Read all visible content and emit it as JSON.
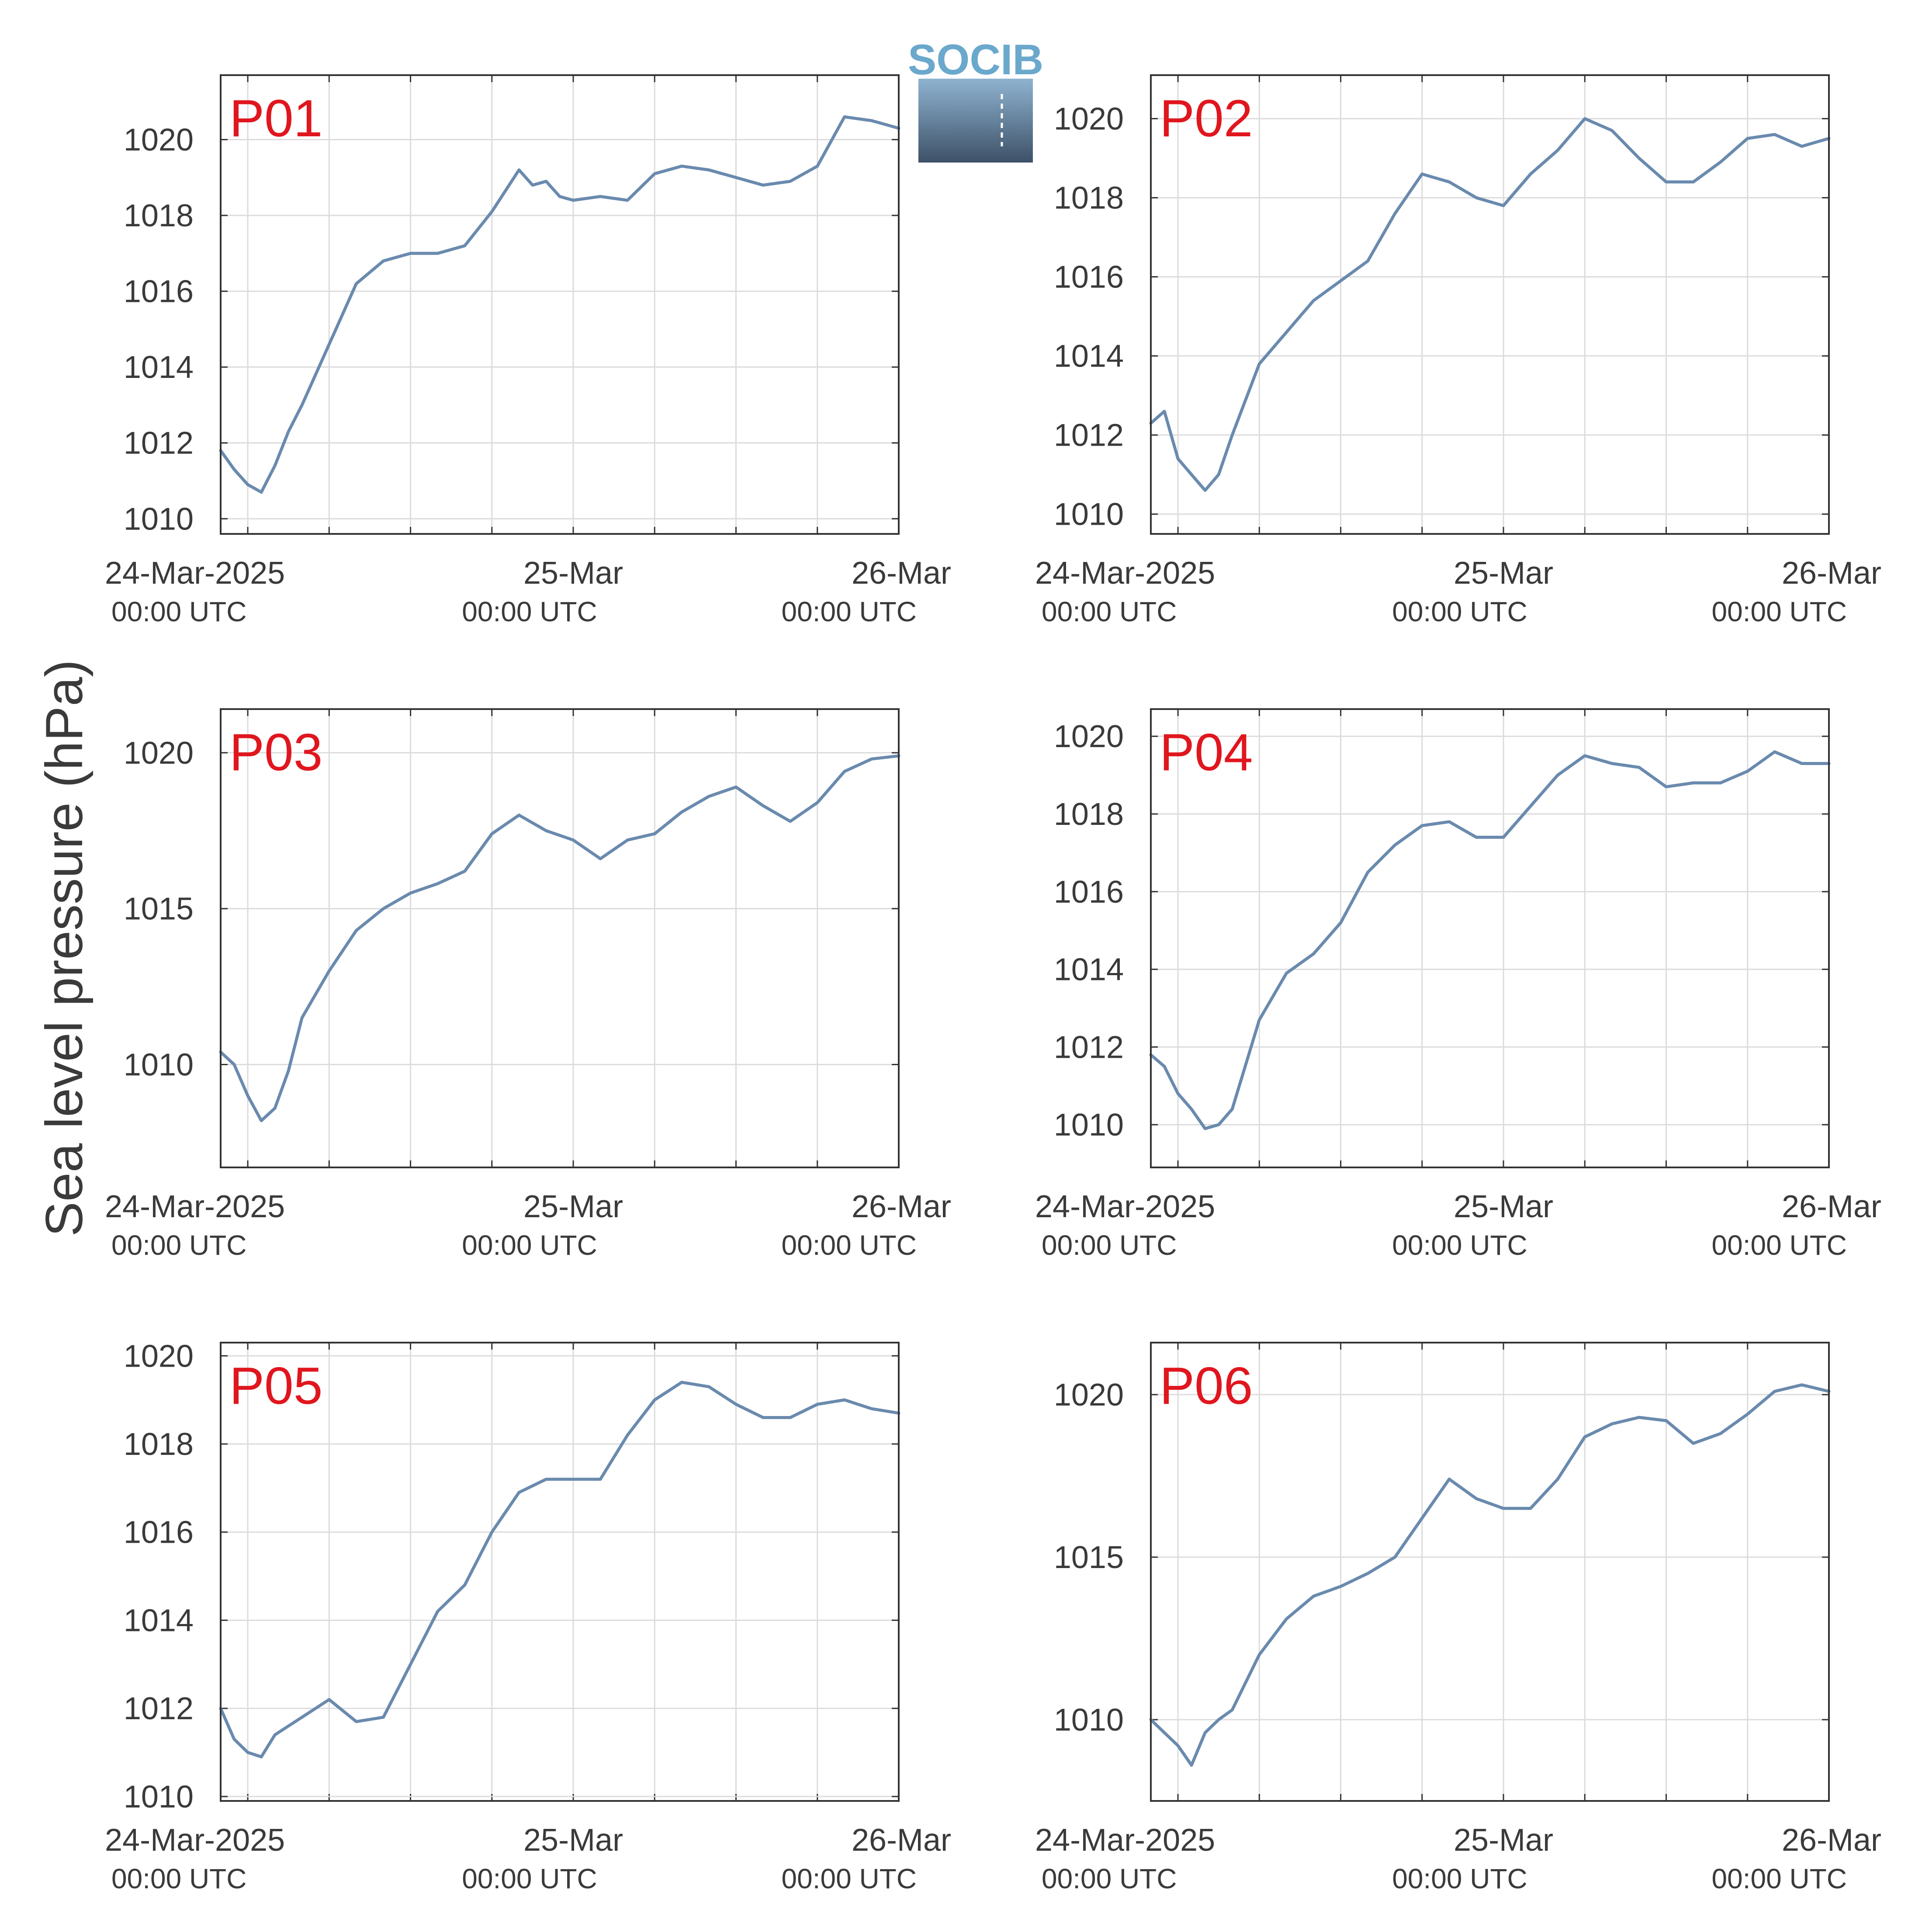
{
  "figure": {
    "ylabel": "Sea level pressure (hPa)",
    "logo_text": "SOCIB",
    "colors": {
      "line": "#6a8aae",
      "panel_label": "#e0161e",
      "grid": "#dcdcdc",
      "axes": "#333333"
    }
  },
  "chart_data": [
    {
      "type": "line",
      "label": "P01",
      "x_ticks": [
        {
          "top": "24-Mar-2025",
          "bottom": "00:00 UTC"
        },
        {
          "top": "25-Mar",
          "bottom": "00:00 UTC"
        },
        {
          "top": "26-Mar",
          "bottom": "00:00 UTC"
        }
      ],
      "xlim": [
        "2025-03-23 22:00",
        "2025-03-26 00:00"
      ],
      "yticks": [
        1010,
        1012,
        1014,
        1016,
        1018,
        1020
      ],
      "ylim": [
        1009.6,
        1021.7
      ],
      "grid": true,
      "series": [
        {
          "x": [
            "2025-03-23 22:00",
            "2025-03-23 23:00",
            "2025-03-24 00:00",
            "2025-03-24 01:00",
            "2025-03-24 02:00",
            "2025-03-24 03:00",
            "2025-03-24 04:00",
            "2025-03-24 06:00",
            "2025-03-24 08:00",
            "2025-03-24 10:00",
            "2025-03-24 12:00",
            "2025-03-24 14:00",
            "2025-03-24 16:00",
            "2025-03-24 18:00",
            "2025-03-24 20:00",
            "2025-03-24 21:00",
            "2025-03-24 22:00",
            "2025-03-24 23:00",
            "2025-03-25 00:00",
            "2025-03-25 02:00",
            "2025-03-25 04:00",
            "2025-03-25 06:00",
            "2025-03-25 08:00",
            "2025-03-25 10:00",
            "2025-03-25 12:00",
            "2025-03-25 14:00",
            "2025-03-25 16:00",
            "2025-03-25 18:00",
            "2025-03-25 20:00",
            "2025-03-25 22:00",
            "2025-03-26 00:00"
          ],
          "values": [
            1011.8,
            1011.3,
            1010.9,
            1010.7,
            1011.4,
            1012.3,
            1013.0,
            1014.6,
            1016.2,
            1016.8,
            1017.0,
            1017.0,
            1017.2,
            1018.1,
            1019.2,
            1018.8,
            1018.9,
            1018.5,
            1018.4,
            1018.5,
            1018.4,
            1019.1,
            1019.3,
            1019.2,
            1019.0,
            1018.8,
            1018.9,
            1019.3,
            1020.6,
            1020.5,
            1020.3
          ]
        }
      ]
    },
    {
      "type": "line",
      "label": "P02",
      "x_ticks": [
        {
          "top": "24-Mar-2025",
          "bottom": "00:00 UTC"
        },
        {
          "top": "25-Mar",
          "bottom": "00:00 UTC"
        },
        {
          "top": "26-Mar",
          "bottom": "00:00 UTC"
        }
      ],
      "xlim": [
        "2025-03-23 22:00",
        "2025-03-26 00:00"
      ],
      "yticks": [
        1010,
        1012,
        1014,
        1016,
        1018,
        1020
      ],
      "ylim": [
        1009.5,
        1021.1
      ],
      "grid": true,
      "series": [
        {
          "x": [
            "2025-03-23 22:00",
            "2025-03-23 23:00",
            "2025-03-24 00:00",
            "2025-03-24 01:00",
            "2025-03-24 02:00",
            "2025-03-24 03:00",
            "2025-03-24 04:00",
            "2025-03-24 06:00",
            "2025-03-24 08:00",
            "2025-03-24 10:00",
            "2025-03-24 12:00",
            "2025-03-24 14:00",
            "2025-03-24 16:00",
            "2025-03-24 18:00",
            "2025-03-24 20:00",
            "2025-03-24 22:00",
            "2025-03-25 00:00",
            "2025-03-25 02:00",
            "2025-03-25 04:00",
            "2025-03-25 06:00",
            "2025-03-25 08:00",
            "2025-03-25 10:00",
            "2025-03-25 12:00",
            "2025-03-25 14:00",
            "2025-03-25 16:00",
            "2025-03-25 18:00",
            "2025-03-25 20:00",
            "2025-03-25 22:00",
            "2025-03-26 00:00"
          ],
          "values": [
            1012.3,
            1012.6,
            1011.4,
            1011.0,
            1010.6,
            1011.0,
            1012.0,
            1013.8,
            1014.6,
            1015.4,
            1015.9,
            1016.4,
            1017.6,
            1018.6,
            1018.4,
            1018.0,
            1017.8,
            1018.6,
            1019.2,
            1020.0,
            1019.7,
            1019.0,
            1018.4,
            1018.4,
            1018.9,
            1019.5,
            1019.6,
            1019.3,
            1019.5
          ]
        }
      ]
    },
    {
      "type": "line",
      "label": "P03",
      "x_ticks": [
        {
          "top": "24-Mar-2025",
          "bottom": "00:00 UTC"
        },
        {
          "top": "25-Mar",
          "bottom": "00:00 UTC"
        },
        {
          "top": "26-Mar",
          "bottom": "00:00 UTC"
        }
      ],
      "xlim": [
        "2025-03-23 22:00",
        "2025-03-26 00:00"
      ],
      "yticks": [
        1010,
        1015,
        1020
      ],
      "ylim": [
        1006.7,
        1021.4
      ],
      "grid": true,
      "series": [
        {
          "x": [
            "2025-03-23 22:00",
            "2025-03-23 23:00",
            "2025-03-24 00:00",
            "2025-03-24 01:00",
            "2025-03-24 02:00",
            "2025-03-24 03:00",
            "2025-03-24 04:00",
            "2025-03-24 06:00",
            "2025-03-24 08:00",
            "2025-03-24 10:00",
            "2025-03-24 12:00",
            "2025-03-24 14:00",
            "2025-03-24 16:00",
            "2025-03-24 18:00",
            "2025-03-24 20:00",
            "2025-03-24 22:00",
            "2025-03-25 00:00",
            "2025-03-25 02:00",
            "2025-03-25 04:00",
            "2025-03-25 06:00",
            "2025-03-25 08:00",
            "2025-03-25 10:00",
            "2025-03-25 12:00",
            "2025-03-25 14:00",
            "2025-03-25 16:00",
            "2025-03-25 18:00",
            "2025-03-25 20:00",
            "2025-03-25 22:00",
            "2025-03-26 00:00"
          ],
          "values": [
            1010.4,
            1010.0,
            1009.0,
            1008.2,
            1008.6,
            1009.8,
            1011.5,
            1013.0,
            1014.3,
            1015.0,
            1015.5,
            1015.8,
            1016.2,
            1017.4,
            1018.0,
            1017.5,
            1017.2,
            1016.6,
            1017.2,
            1017.4,
            1018.1,
            1018.6,
            1018.9,
            1018.3,
            1017.8,
            1018.4,
            1019.4,
            1019.8,
            1019.9
          ]
        }
      ]
    },
    {
      "type": "line",
      "label": "P04",
      "x_ticks": [
        {
          "top": "24-Mar-2025",
          "bottom": "00:00 UTC"
        },
        {
          "top": "25-Mar",
          "bottom": "00:00 UTC"
        },
        {
          "top": "26-Mar",
          "bottom": "00:00 UTC"
        }
      ],
      "xlim": [
        "2025-03-23 22:00",
        "2025-03-26 00:00"
      ],
      "yticks": [
        1010,
        1012,
        1014,
        1016,
        1018,
        1020
      ],
      "ylim": [
        1008.9,
        1020.7
      ],
      "grid": true,
      "series": [
        {
          "x": [
            "2025-03-23 22:00",
            "2025-03-23 23:00",
            "2025-03-24 00:00",
            "2025-03-24 01:00",
            "2025-03-24 02:00",
            "2025-03-24 03:00",
            "2025-03-24 04:00",
            "2025-03-24 06:00",
            "2025-03-24 08:00",
            "2025-03-24 10:00",
            "2025-03-24 12:00",
            "2025-03-24 14:00",
            "2025-03-24 16:00",
            "2025-03-24 18:00",
            "2025-03-24 20:00",
            "2025-03-24 22:00",
            "2025-03-25 00:00",
            "2025-03-25 02:00",
            "2025-03-25 04:00",
            "2025-03-25 06:00",
            "2025-03-25 08:00",
            "2025-03-25 10:00",
            "2025-03-25 12:00",
            "2025-03-25 14:00",
            "2025-03-25 16:00",
            "2025-03-25 18:00",
            "2025-03-25 20:00",
            "2025-03-25 22:00",
            "2025-03-26 00:00"
          ],
          "values": [
            1011.8,
            1011.5,
            1010.8,
            1010.4,
            1009.9,
            1010.0,
            1010.4,
            1012.7,
            1013.9,
            1014.4,
            1015.2,
            1016.5,
            1017.2,
            1017.7,
            1017.8,
            1017.4,
            1017.4,
            1018.2,
            1019.0,
            1019.5,
            1019.3,
            1019.2,
            1018.7,
            1018.8,
            1018.8,
            1019.1,
            1019.6,
            1019.3,
            1019.3
          ]
        }
      ]
    },
    {
      "type": "line",
      "label": "P05",
      "x_ticks": [
        {
          "top": "24-Mar-2025",
          "bottom": "00:00 UTC"
        },
        {
          "top": "25-Mar",
          "bottom": "00:00 UTC"
        },
        {
          "top": "26-Mar",
          "bottom": "00:00 UTC"
        }
      ],
      "xlim": [
        "2025-03-23 22:00",
        "2025-03-26 00:00"
      ],
      "yticks": [
        1010,
        1012,
        1014,
        1016,
        1018,
        1020
      ],
      "ylim": [
        1009.9,
        1020.3
      ],
      "grid": true,
      "series": [
        {
          "x": [
            "2025-03-23 22:00",
            "2025-03-23 23:00",
            "2025-03-24 00:00",
            "2025-03-24 01:00",
            "2025-03-24 02:00",
            "2025-03-24 03:00",
            "2025-03-24 04:00",
            "2025-03-24 06:00",
            "2025-03-24 08:00",
            "2025-03-24 10:00",
            "2025-03-24 12:00",
            "2025-03-24 14:00",
            "2025-03-24 16:00",
            "2025-03-24 18:00",
            "2025-03-24 20:00",
            "2025-03-24 22:00",
            "2025-03-25 00:00",
            "2025-03-25 02:00",
            "2025-03-25 04:00",
            "2025-03-25 06:00",
            "2025-03-25 08:00",
            "2025-03-25 10:00",
            "2025-03-25 12:00",
            "2025-03-25 14:00",
            "2025-03-25 16:00",
            "2025-03-25 18:00",
            "2025-03-25 20:00",
            "2025-03-25 22:00",
            "2025-03-26 00:00"
          ],
          "values": [
            1012.0,
            1011.3,
            1011.0,
            1010.9,
            1011.4,
            1011.6,
            1011.8,
            1012.2,
            1011.7,
            1011.8,
            1013.0,
            1014.2,
            1014.8,
            1016.0,
            1016.9,
            1017.2,
            1017.2,
            1017.2,
            1018.2,
            1019.0,
            1019.4,
            1019.3,
            1018.9,
            1018.6,
            1018.6,
            1018.9,
            1019.0,
            1018.8,
            1018.7
          ]
        }
      ]
    },
    {
      "type": "line",
      "label": "P06",
      "x_ticks": [
        {
          "top": "24-Mar-2025",
          "bottom": "00:00 UTC"
        },
        {
          "top": "25-Mar",
          "bottom": "00:00 UTC"
        },
        {
          "top": "26-Mar",
          "bottom": "00:00 UTC"
        }
      ],
      "xlim": [
        "2025-03-23 22:00",
        "2025-03-26 00:00"
      ],
      "yticks": [
        1010,
        1015,
        1020
      ],
      "ylim": [
        1007.5,
        1021.6
      ],
      "grid": true,
      "series": [
        {
          "x": [
            "2025-03-23 22:00",
            "2025-03-23 23:00",
            "2025-03-24 00:00",
            "2025-03-24 01:00",
            "2025-03-24 02:00",
            "2025-03-24 03:00",
            "2025-03-24 04:00",
            "2025-03-24 06:00",
            "2025-03-24 08:00",
            "2025-03-24 10:00",
            "2025-03-24 12:00",
            "2025-03-24 14:00",
            "2025-03-24 16:00",
            "2025-03-24 18:00",
            "2025-03-24 20:00",
            "2025-03-24 22:00",
            "2025-03-25 00:00",
            "2025-03-25 02:00",
            "2025-03-25 04:00",
            "2025-03-25 06:00",
            "2025-03-25 08:00",
            "2025-03-25 10:00",
            "2025-03-25 12:00",
            "2025-03-25 14:00",
            "2025-03-25 16:00",
            "2025-03-25 18:00",
            "2025-03-25 20:00",
            "2025-03-25 22:00",
            "2025-03-26 00:00"
          ],
          "values": [
            1010.0,
            1009.6,
            1009.2,
            1008.6,
            1009.6,
            1010.0,
            1010.3,
            1012.0,
            1013.1,
            1013.8,
            1014.1,
            1014.5,
            1015.0,
            1016.2,
            1017.4,
            1016.8,
            1016.5,
            1016.5,
            1017.4,
            1018.7,
            1019.1,
            1019.3,
            1019.2,
            1018.5,
            1018.8,
            1019.4,
            1020.1,
            1020.3,
            1020.1
          ]
        }
      ]
    }
  ]
}
